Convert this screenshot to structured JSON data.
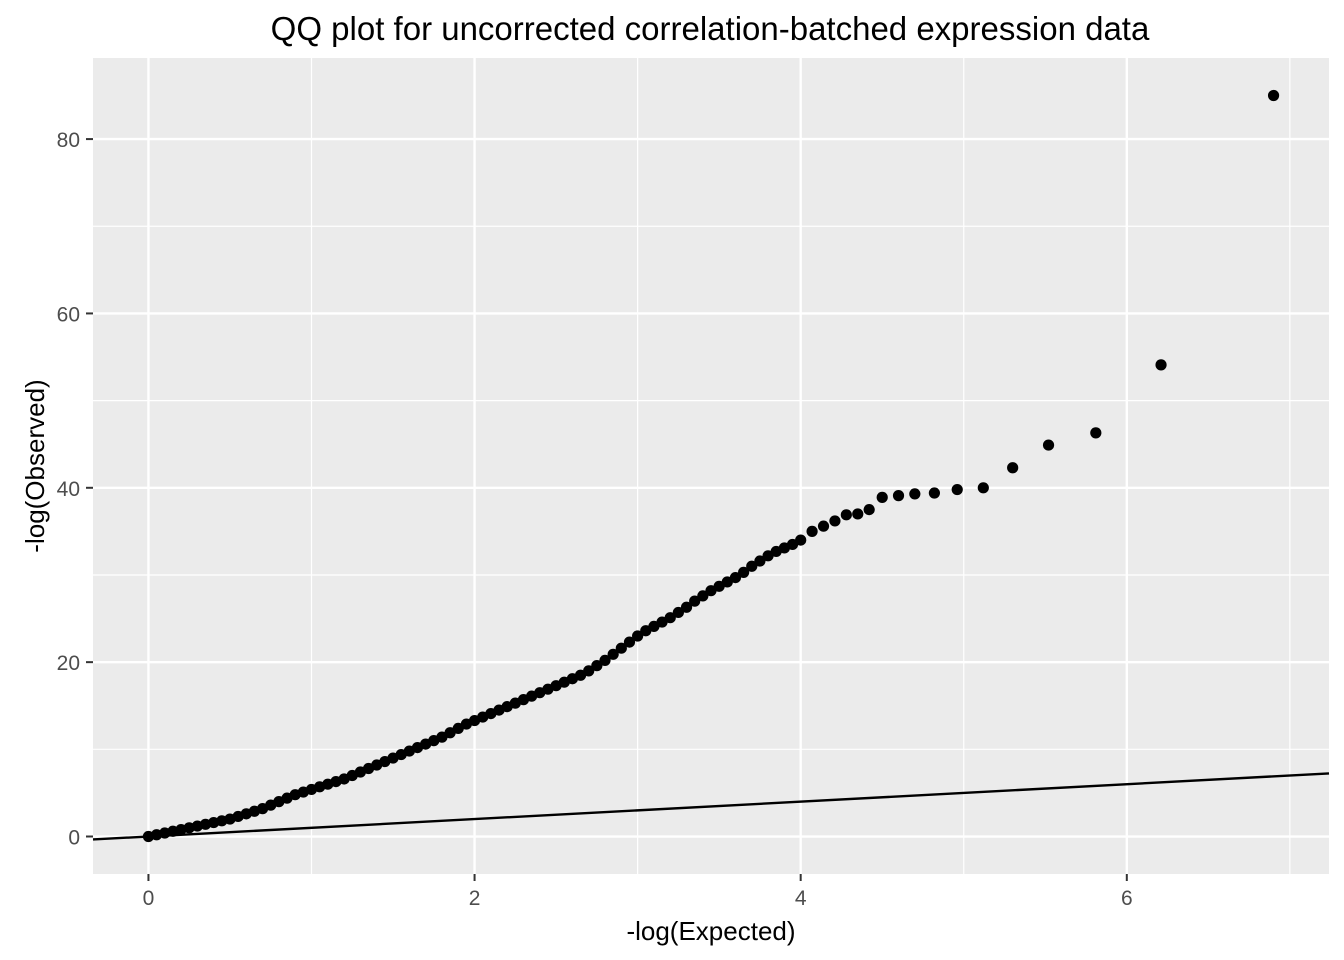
{
  "chart_data": {
    "type": "scatter",
    "title": "QQ plot for uncorrected correlation-batched expression data",
    "xlabel": "-log(Expected)",
    "ylabel": "-log(Observed)",
    "xlim": [
      -0.34,
      7.24
    ],
    "ylim": [
      -4.3,
      89.3
    ],
    "x_ticks": [
      0,
      2,
      4,
      6
    ],
    "x_tick_labels": [
      "0",
      "2",
      "4",
      "6"
    ],
    "y_ticks": [
      0,
      20,
      40,
      60,
      80
    ],
    "y_tick_labels": [
      "0",
      "20",
      "40",
      "60",
      "80"
    ],
    "grid": true,
    "legend": "none",
    "colors": {
      "panel": "#ebebeb",
      "grid": "#ffffff",
      "points": "#000000",
      "reference_line": "#000000"
    },
    "reference_line": {
      "intercept": 0,
      "slope": 1
    },
    "series": [
      {
        "points": [
          [
            0.0,
            0.0
          ],
          [
            0.05,
            0.2
          ],
          [
            0.1,
            0.4
          ],
          [
            0.15,
            0.6
          ],
          [
            0.2,
            0.8
          ],
          [
            0.25,
            1.0
          ],
          [
            0.3,
            1.2
          ],
          [
            0.35,
            1.4
          ],
          [
            0.4,
            1.6
          ],
          [
            0.45,
            1.8
          ],
          [
            0.5,
            2.0
          ],
          [
            0.55,
            2.3
          ],
          [
            0.6,
            2.6
          ],
          [
            0.65,
            2.9
          ],
          [
            0.7,
            3.2
          ],
          [
            0.75,
            3.6
          ],
          [
            0.8,
            4.0
          ],
          [
            0.85,
            4.4
          ],
          [
            0.9,
            4.8
          ],
          [
            0.95,
            5.1
          ],
          [
            1.0,
            5.4
          ],
          [
            1.05,
            5.7
          ],
          [
            1.1,
            6.0
          ],
          [
            1.15,
            6.3
          ],
          [
            1.2,
            6.6
          ],
          [
            1.25,
            7.0
          ],
          [
            1.3,
            7.4
          ],
          [
            1.35,
            7.8
          ],
          [
            1.4,
            8.2
          ],
          [
            1.45,
            8.6
          ],
          [
            1.5,
            9.0
          ],
          [
            1.55,
            9.4
          ],
          [
            1.6,
            9.8
          ],
          [
            1.65,
            10.2
          ],
          [
            1.7,
            10.6
          ],
          [
            1.75,
            11.0
          ],
          [
            1.8,
            11.4
          ],
          [
            1.85,
            11.9
          ],
          [
            1.9,
            12.4
          ],
          [
            1.95,
            12.9
          ],
          [
            2.0,
            13.3
          ],
          [
            2.05,
            13.7
          ],
          [
            2.1,
            14.1
          ],
          [
            2.15,
            14.5
          ],
          [
            2.2,
            14.9
          ],
          [
            2.25,
            15.3
          ],
          [
            2.3,
            15.7
          ],
          [
            2.35,
            16.1
          ],
          [
            2.4,
            16.5
          ],
          [
            2.45,
            16.9
          ],
          [
            2.5,
            17.3
          ],
          [
            2.55,
            17.7
          ],
          [
            2.6,
            18.1
          ],
          [
            2.65,
            18.5
          ],
          [
            2.7,
            19.0
          ],
          [
            2.75,
            19.6
          ],
          [
            2.8,
            20.2
          ],
          [
            2.85,
            20.9
          ],
          [
            2.9,
            21.6
          ],
          [
            2.95,
            22.3
          ],
          [
            3.0,
            23.0
          ],
          [
            3.05,
            23.6
          ],
          [
            3.1,
            24.1
          ],
          [
            3.15,
            24.6
          ],
          [
            3.2,
            25.1
          ],
          [
            3.25,
            25.7
          ],
          [
            3.3,
            26.3
          ],
          [
            3.35,
            27.0
          ],
          [
            3.4,
            27.6
          ],
          [
            3.45,
            28.2
          ],
          [
            3.5,
            28.7
          ],
          [
            3.55,
            29.2
          ],
          [
            3.6,
            29.7
          ],
          [
            3.65,
            30.3
          ],
          [
            3.7,
            31.0
          ],
          [
            3.75,
            31.6
          ],
          [
            3.8,
            32.2
          ],
          [
            3.85,
            32.7
          ],
          [
            3.9,
            33.1
          ],
          [
            3.95,
            33.5
          ],
          [
            4.0,
            34.0
          ],
          [
            4.07,
            35.0
          ],
          [
            4.14,
            35.6
          ],
          [
            4.21,
            36.2
          ],
          [
            4.28,
            36.9
          ],
          [
            4.35,
            37.0
          ],
          [
            4.42,
            37.5
          ],
          [
            4.5,
            38.9
          ],
          [
            4.6,
            39.1
          ],
          [
            4.7,
            39.3
          ],
          [
            4.82,
            39.4
          ],
          [
            4.96,
            39.8
          ],
          [
            5.12,
            40.0
          ],
          [
            5.3,
            42.3
          ],
          [
            5.52,
            44.9
          ],
          [
            5.81,
            46.3
          ],
          [
            6.21,
            54.1
          ],
          [
            6.9,
            85.0
          ]
        ]
      }
    ]
  }
}
